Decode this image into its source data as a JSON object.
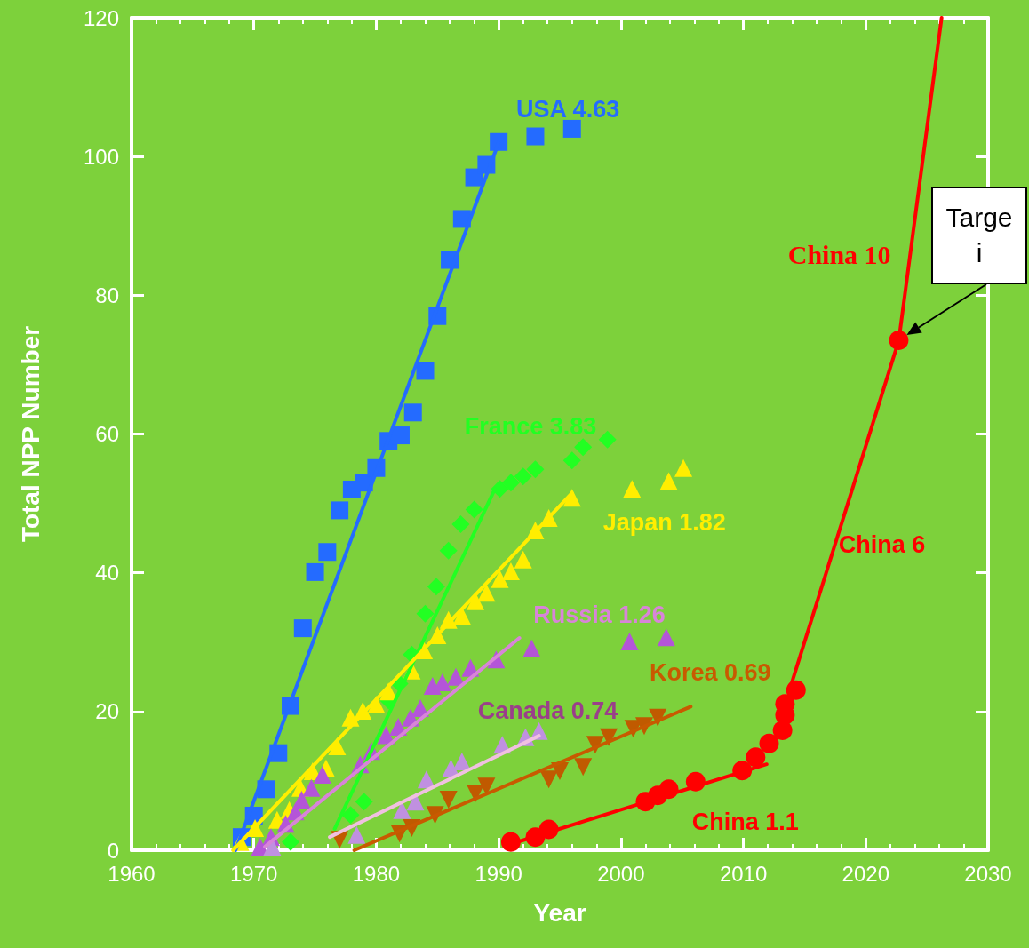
{
  "chart_data": {
    "type": "scatter",
    "xlabel": "Year",
    "ylabel": "Total NPP Number",
    "xlim": [
      1960,
      2030
    ],
    "ylim": [
      0,
      120
    ],
    "xticks": [
      1960,
      1970,
      1980,
      1990,
      2000,
      2010,
      2020,
      2030
    ],
    "yticks": [
      0,
      20,
      40,
      60,
      80,
      100,
      120
    ],
    "grid": false,
    "legend": false,
    "annotations": [
      "Targe\ni"
    ],
    "series": [
      {
        "marker": "square",
        "color": "#246bff",
        "x": [
          1969,
          1970,
          1971,
          1972,
          1973,
          1974,
          1975,
          1976,
          1977,
          1978,
          1979,
          1980,
          1981,
          1982,
          1983,
          1984,
          1985,
          1986,
          1987,
          1988,
          1989,
          1990,
          1993,
          1996
        ],
        "values": [
          1.9,
          5,
          8.8,
          14,
          20.8,
          32,
          40.1,
          43,
          49,
          52,
          53,
          55.1,
          59,
          59.8,
          63.1,
          69.1,
          77,
          85.1,
          91,
          97,
          98.8,
          102.1,
          102.9,
          104
        ]
      },
      {
        "type": "line",
        "name": "USA 4.63",
        "color": "#246bff",
        "marker": "none",
        "x": [
          1968.5,
          1990
        ],
        "values": [
          0,
          102
        ]
      },
      {
        "marker": "diamond",
        "color": "#22ff22",
        "x": [
          1973,
          1977.9,
          1979,
          1981,
          1981.9,
          1982.9,
          1984,
          1984.9,
          1985.9,
          1986.9,
          1988,
          1990.1,
          1991,
          1992,
          1993,
          1996,
          1996.9,
          1998.9
        ],
        "values": [
          1.2,
          5.1,
          7,
          21.6,
          24,
          28.2,
          34.1,
          38,
          43.2,
          47,
          49.1,
          52.1,
          53,
          53.9,
          54.9,
          56.2,
          58.1,
          59.2
        ]
      },
      {
        "type": "line",
        "name": "France 3.83",
        "color": "#22ff22",
        "marker": "none",
        "x": [
          1976.6,
          1989.7
        ],
        "values": [
          3.1,
          52.1
        ]
      },
      {
        "marker": "triangle",
        "color": "#ffee00",
        "x": [
          1968.9,
          1970.1,
          1971.9,
          1972.9,
          1973.8,
          1974.8,
          1975.9,
          1976.8,
          1977.9,
          1978.9,
          1980,
          1981,
          1982.9,
          1983.9,
          1985,
          1985.9,
          1987,
          1988.1,
          1989,
          1990.1,
          1991,
          1992,
          1993,
          1994.1,
          1996,
          2000.9,
          2003.9,
          2005.1
        ],
        "values": [
          1.2,
          3.2,
          4.4,
          5.8,
          9,
          11.4,
          11.8,
          15,
          19.1,
          20.1,
          21,
          22.9,
          25.9,
          28.8,
          31,
          33.2,
          33.8,
          35.9,
          37.1,
          39.1,
          40.2,
          41.9,
          46.1,
          47.9,
          50.8,
          52.1,
          53.2,
          55.1
        ]
      },
      {
        "type": "line",
        "name": "Japan 1.82",
        "color": "#ffee00",
        "marker": "none",
        "x": [
          1968.3,
          1996
        ],
        "values": [
          0,
          51.5
        ]
      },
      {
        "marker": "triangle",
        "color": "#b455d8",
        "x": [
          1970.5,
          1971.4,
          1972.6,
          1973.4,
          1973.9,
          1974.7,
          1975.6,
          1978.7,
          1979.6,
          1980.8,
          1981.8,
          1982.8,
          1983.6,
          1984.6,
          1985.4,
          1986.5,
          1987.7,
          1989.8,
          1992.7,
          2000.7,
          2003.7
        ],
        "values": [
          0.5,
          1.9,
          3.8,
          5.6,
          7.3,
          9,
          10.9,
          12.4,
          14.3,
          16.6,
          17.8,
          19.1,
          20.5,
          23.7,
          24.2,
          25,
          26.3,
          27.5,
          29.1,
          30.1,
          30.7
        ]
      },
      {
        "type": "line",
        "name": "Russia 1.26",
        "color": "#d884d8",
        "marker": "none",
        "x": [
          1970.9,
          1991.7
        ],
        "values": [
          0.5,
          30.6
        ]
      },
      {
        "marker": "triangle",
        "color": "#c090e0",
        "x": [
          1971.5,
          1978.4,
          1982.1,
          1983.2,
          1984.1,
          1986.1,
          1987,
          1990.3,
          1992.2,
          1993.3
        ],
        "values": [
          0.5,
          2.2,
          5.8,
          7,
          10.2,
          11.8,
          12.8,
          15.2,
          16.3,
          17.2
        ]
      },
      {
        "type": "line",
        "name": "Canada 0.74",
        "color": "#f0c0e0",
        "marker": "none",
        "x": [
          1976.2,
          1993.3
        ],
        "values": [
          1.9,
          16.5
        ]
      },
      {
        "marker": "triangle",
        "color": "#c05a00",
        "x": [
          1977,
          1981.9,
          1982.9,
          1984.8,
          1985.9,
          1988.1,
          1989,
          1994.1,
          1995,
          1996.9,
          1997.9,
          1999,
          2001,
          2001.9,
          2003
        ],
        "values": [
          1.5,
          2.4,
          3.2,
          5.1,
          7.3,
          8.2,
          9.2,
          10.2,
          11.4,
          12,
          15.2,
          16.3,
          17.5,
          17.9,
          19.1
        ]
      },
      {
        "type": "line",
        "name": "Korea 0.69",
        "color": "#c85a00",
        "marker": "none",
        "x": [
          1978.2,
          2005.7
        ],
        "values": [
          0,
          20.7
        ]
      },
      {
        "marker": "circle",
        "color": "#ff0000",
        "x": [
          1991,
          1993,
          1994.1,
          2002,
          2003,
          2003.9,
          2006.1,
          2009.9,
          2011,
          2012.1,
          2013.2,
          2013.4,
          2013.4,
          2014.3,
          2022.7
        ],
        "values": [
          1.2,
          1.9,
          3,
          7,
          7.9,
          8.8,
          9.9,
          11.5,
          13.4,
          15.4,
          17.3,
          19.5,
          21.1,
          23.1,
          73.5
        ]
      },
      {
        "type": "line",
        "name": "China 1.1",
        "color": "#ff0000",
        "marker": "none",
        "x": [
          1991,
          2011.9
        ],
        "values": [
          0.9,
          12.4
        ]
      },
      {
        "type": "line",
        "name": "China 6",
        "color": "#ff0000",
        "marker": "none",
        "x": [
          2013.7,
          2022.7
        ],
        "values": [
          22.7,
          73.5
        ]
      },
      {
        "type": "line",
        "name": "China 10",
        "color": "#ff0000",
        "marker": "none",
        "x": [
          2022.7,
          2026.2
        ],
        "values": [
          73.5,
          120
        ]
      }
    ]
  }
}
